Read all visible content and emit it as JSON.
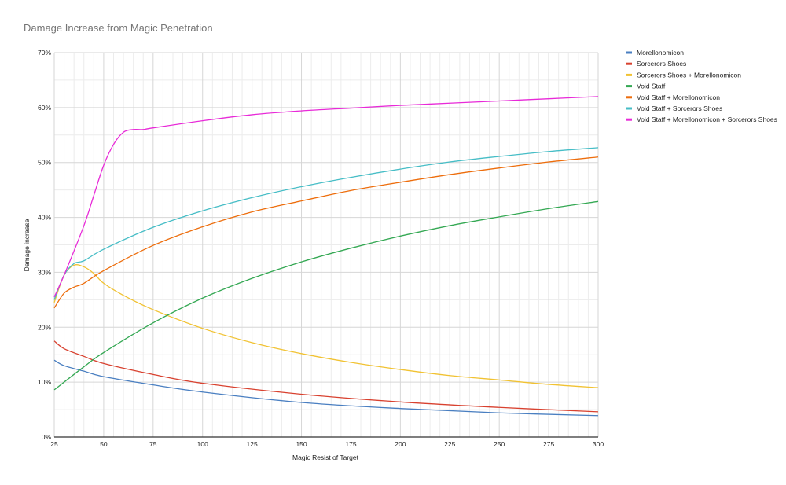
{
  "chart_data": {
    "type": "line",
    "title": "Damage Increase from Magic Penetration",
    "xlabel": "Magic Resist of Target",
    "ylabel": "Damage increase",
    "xlim": [
      25,
      300
    ],
    "ylim": [
      0,
      70
    ],
    "x_ticks": [
      "25",
      "50",
      "75",
      "100",
      "125",
      "150",
      "175",
      "200",
      "225",
      "250",
      "275",
      "300"
    ],
    "y_ticks": [
      "0%",
      "10%",
      "20%",
      "30%",
      "40%",
      "50%",
      "60%",
      "70%"
    ],
    "grid": true,
    "legend_position": "right",
    "series": [
      {
        "name": "Morellonomicon",
        "color": "#4a7fc1",
        "points": [
          [
            25,
            14.0
          ],
          [
            30,
            13.0
          ],
          [
            40,
            12.0
          ],
          [
            50,
            11.0
          ],
          [
            75,
            9.5
          ],
          [
            100,
            8.2
          ],
          [
            150,
            6.3
          ],
          [
            200,
            5.2
          ],
          [
            250,
            4.4
          ],
          [
            300,
            3.9
          ]
        ]
      },
      {
        "name": "Sorcerors Shoes",
        "color": "#d8412f",
        "points": [
          [
            25,
            17.5
          ],
          [
            30,
            16.1
          ],
          [
            40,
            14.7
          ],
          [
            50,
            13.4
          ],
          [
            75,
            11.4
          ],
          [
            100,
            9.8
          ],
          [
            150,
            7.8
          ],
          [
            200,
            6.4
          ],
          [
            250,
            5.4
          ],
          [
            300,
            4.6
          ]
        ]
      },
      {
        "name": "Sorcerors Shoes + Morellonomicon",
        "color": "#f1c232",
        "points": [
          [
            25,
            24.5
          ],
          [
            30,
            29.5
          ],
          [
            35,
            31.3
          ],
          [
            40,
            31.0
          ],
          [
            45,
            29.8
          ],
          [
            50,
            28.0
          ],
          [
            60,
            25.8
          ],
          [
            75,
            23.2
          ],
          [
            100,
            19.8
          ],
          [
            125,
            17.2
          ],
          [
            150,
            15.2
          ],
          [
            175,
            13.6
          ],
          [
            200,
            12.3
          ],
          [
            225,
            11.2
          ],
          [
            250,
            10.4
          ],
          [
            275,
            9.6
          ],
          [
            300,
            9.0
          ]
        ]
      },
      {
        "name": "Void Staff",
        "color": "#34a853",
        "points": [
          [
            25,
            8.6
          ],
          [
            40,
            12.8
          ],
          [
            50,
            15.4
          ],
          [
            75,
            20.8
          ],
          [
            100,
            25.3
          ],
          [
            125,
            28.9
          ],
          [
            150,
            31.9
          ],
          [
            175,
            34.4
          ],
          [
            200,
            36.6
          ],
          [
            225,
            38.5
          ],
          [
            250,
            40.1
          ],
          [
            275,
            41.6
          ],
          [
            300,
            42.9
          ]
        ]
      },
      {
        "name": "Void Staff + Morellonomicon",
        "color": "#ed6d0c",
        "points": [
          [
            25,
            23.5
          ],
          [
            30,
            26.2
          ],
          [
            35,
            27.3
          ],
          [
            40,
            28.0
          ],
          [
            50,
            30.3
          ],
          [
            75,
            34.9
          ],
          [
            100,
            38.3
          ],
          [
            125,
            41.0
          ],
          [
            150,
            43.0
          ],
          [
            175,
            44.9
          ],
          [
            200,
            46.4
          ],
          [
            225,
            47.8
          ],
          [
            250,
            49.0
          ],
          [
            275,
            50.1
          ],
          [
            300,
            51.0
          ]
        ]
      },
      {
        "name": "Void Staff + Sorcerors Shoes",
        "color": "#46bdc6",
        "points": [
          [
            25,
            25.0
          ],
          [
            30,
            29.5
          ],
          [
            35,
            31.6
          ],
          [
            40,
            32.1
          ],
          [
            50,
            34.2
          ],
          [
            75,
            38.2
          ],
          [
            100,
            41.2
          ],
          [
            125,
            43.6
          ],
          [
            150,
            45.6
          ],
          [
            175,
            47.3
          ],
          [
            200,
            48.8
          ],
          [
            225,
            50.1
          ],
          [
            250,
            51.1
          ],
          [
            275,
            52.0
          ],
          [
            300,
            52.7
          ]
        ]
      },
      {
        "name": "Void Staff + Morellonomicon + Sorcerors Shoes",
        "color": "#e82ad8",
        "points": [
          [
            25,
            25.5
          ],
          [
            30,
            29.5
          ],
          [
            40,
            38.5
          ],
          [
            45,
            44.0
          ],
          [
            50,
            49.5
          ],
          [
            55,
            53.3
          ],
          [
            60,
            55.5
          ],
          [
            65,
            56.0
          ],
          [
            70,
            56.0
          ],
          [
            75,
            56.3
          ],
          [
            100,
            57.6
          ],
          [
            125,
            58.7
          ],
          [
            150,
            59.4
          ],
          [
            175,
            59.9
          ],
          [
            200,
            60.4
          ],
          [
            225,
            60.8
          ],
          [
            250,
            61.2
          ],
          [
            275,
            61.6
          ],
          [
            300,
            62.0
          ]
        ]
      }
    ]
  }
}
